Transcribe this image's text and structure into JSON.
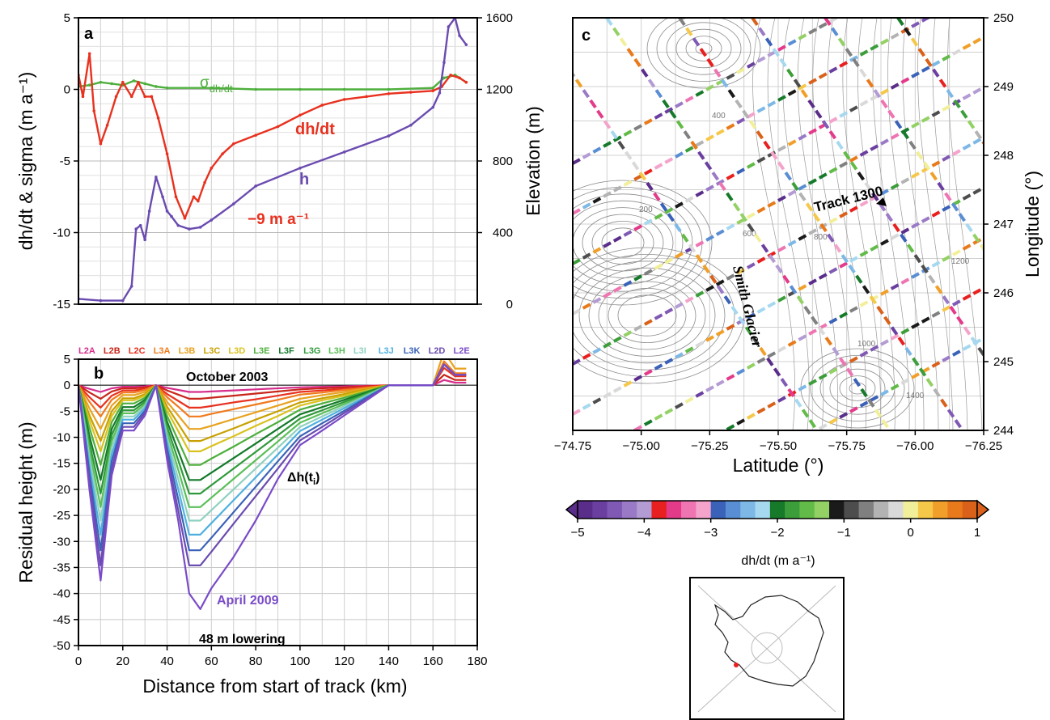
{
  "chart_data": [
    {
      "panel": "a",
      "type": "line",
      "xlabel": "",
      "ylabel": "dh/dt & sigma (m a⁻¹)",
      "ylabel_right": "Elevation (m)",
      "xlim": [
        0,
        180
      ],
      "ylim": [
        -15,
        5
      ],
      "ylim_right": [
        0,
        1600
      ],
      "yticks": [
        "5",
        "0",
        "-5",
        "-10",
        "-15"
      ],
      "yticks_right": [
        "1600",
        "1200",
        "800",
        "400",
        "0"
      ],
      "grid": true,
      "annotations": {
        "sigma": "σ",
        "sigma_sub": "dh/dt",
        "dhdt": "dh/dt",
        "h": "h",
        "min_rate": "−9 m a⁻¹"
      },
      "series": [
        {
          "name": "σdh/dt",
          "axis": "left",
          "color": "#4daf3c",
          "x": [
            0,
            5,
            10,
            15,
            20,
            25,
            30,
            35,
            40,
            60,
            80,
            100,
            120,
            140,
            160,
            165,
            170,
            175
          ],
          "y": [
            0.2,
            0.3,
            0.5,
            0.4,
            0.3,
            0.6,
            0.4,
            0.2,
            0.1,
            0.1,
            0.0,
            0.0,
            0.0,
            0.0,
            0.1,
            0.8,
            1.0,
            0.5
          ]
        },
        {
          "name": "dh/dt",
          "axis": "left",
          "color": "#e8311f",
          "x": [
            0,
            2,
            5,
            7,
            10,
            13,
            17,
            20,
            24,
            27,
            30,
            33,
            36,
            40,
            44,
            48,
            52,
            54,
            57,
            60,
            65,
            70,
            80,
            90,
            100,
            110,
            120,
            130,
            140,
            150,
            160,
            164,
            168,
            172,
            175
          ],
          "y": [
            1,
            -0.5,
            2.5,
            -1.5,
            -3.8,
            -2.5,
            -0.5,
            0.5,
            -0.5,
            0.5,
            -0.5,
            -0.5,
            -2,
            -4.5,
            -7.5,
            -9,
            -7.5,
            -7.8,
            -6.5,
            -5.5,
            -4.5,
            -3.8,
            -3.2,
            -2.6,
            -1.8,
            -1.1,
            -0.7,
            -0.5,
            -0.3,
            -0.2,
            -0.1,
            0.2,
            1.0,
            0.8,
            0.5
          ]
        },
        {
          "name": "h",
          "axis": "right",
          "color": "#6a4bb0",
          "x": [
            0,
            10,
            20,
            24,
            26,
            28,
            30,
            32,
            35,
            38,
            40,
            42,
            45,
            50,
            55,
            60,
            70,
            80,
            100,
            120,
            140,
            150,
            160,
            163,
            165,
            167,
            170,
            172,
            175
          ],
          "y": [
            30,
            20,
            20,
            100,
            420,
            440,
            360,
            520,
            710,
            600,
            520,
            490,
            440,
            420,
            430,
            470,
            560,
            660,
            760,
            850,
            940,
            1000,
            1100,
            1180,
            1350,
            1550,
            1600,
            1500,
            1450
          ]
        }
      ]
    },
    {
      "panel": "b",
      "type": "line",
      "xlabel": "Distance from start of track (km)",
      "ylabel": "Residual height (m)",
      "xlim": [
        0,
        180
      ],
      "ylim": [
        -50,
        5
      ],
      "xticks": [
        "0",
        "20",
        "40",
        "60",
        "80",
        "100",
        "120",
        "140",
        "160",
        "180"
      ],
      "yticks": [
        "5",
        "0",
        "-5",
        "-10",
        "-15",
        "-20",
        "-25",
        "-30",
        "-35",
        "-40",
        "-45",
        "-50"
      ],
      "grid": true,
      "annotations": {
        "top": "October 2003",
        "dh_prefix": "Δh(t",
        "dh_sub": "i",
        "dh_suffix": ")",
        "bottom_epoch": "April 2009",
        "lowering": "48 m lowering"
      },
      "x": [
        0,
        5,
        10,
        15,
        20,
        25,
        30,
        35,
        40,
        45,
        50,
        55,
        60,
        70,
        80,
        90,
        100,
        110,
        120,
        130,
        140,
        150,
        160,
        165,
        170,
        175
      ],
      "series": [
        {
          "name": "L2A",
          "color": "#d62e8c",
          "values": [
            0,
            -0.7,
            -1.3,
            -0.6,
            -0.3,
            -0.3,
            -0.2,
            0,
            -0.5,
            -0.9,
            -1.3,
            -1.3,
            -1.2,
            -1.0,
            -0.8,
            -0.6,
            -0.4,
            -0.3,
            -0.2,
            -0.1,
            0,
            0,
            0,
            1,
            0.5,
            0.5
          ]
        },
        {
          "name": "L2B",
          "color": "#c8261a",
          "values": [
            0,
            -1.4,
            -2.6,
            -1.2,
            -0.6,
            -0.6,
            -0.4,
            0,
            -1.0,
            -1.8,
            -2.6,
            -2.6,
            -2.4,
            -2.0,
            -1.6,
            -1.2,
            -0.8,
            -0.6,
            -0.4,
            -0.2,
            0,
            0,
            0,
            2,
            1,
            1
          ]
        },
        {
          "name": "L2C",
          "color": "#e8311f",
          "values": [
            0,
            -2.3,
            -4.3,
            -2.0,
            -1.0,
            -1.0,
            -0.7,
            0,
            -1.7,
            -3.0,
            -4.3,
            -4.3,
            -4.0,
            -3.3,
            -2.7,
            -2.0,
            -1.3,
            -1.0,
            -0.7,
            -0.3,
            0,
            0,
            0,
            3.3,
            1.7,
            1.7
          ]
        },
        {
          "name": "L3A",
          "color": "#f07a1c",
          "values": [
            0,
            -3.2,
            -6.0,
            -2.8,
            -1.4,
            -1.4,
            -0.9,
            0,
            -2.3,
            -4.1,
            -6.0,
            -6.0,
            -5.5,
            -4.6,
            -3.7,
            -2.8,
            -1.8,
            -1.4,
            -0.9,
            -0.5,
            0,
            0,
            0,
            4.6,
            2.3,
            2.3
          ]
        },
        {
          "name": "L3B",
          "color": "#e8a21f",
          "values": [
            0,
            -4.5,
            -8.4,
            -3.9,
            -1.9,
            -1.9,
            -1.3,
            0,
            -3.2,
            -5.8,
            -8.4,
            -8.4,
            -7.8,
            -6.5,
            -5.2,
            -3.9,
            -2.6,
            -1.9,
            -1.3,
            -0.6,
            0,
            0,
            0,
            6.5,
            3.2,
            3.2
          ]
        },
        {
          "name": "L3C",
          "color": "#c8a000",
          "values": [
            0,
            -5.8,
            -10.7,
            -5.0,
            -2.5,
            -2.5,
            -1.7,
            0,
            -4.1,
            -7.4,
            -10.7,
            -10.7,
            -9.9,
            -8.3,
            -6.6,
            -5.0,
            -3.3,
            -2.5,
            -1.7,
            -0.8,
            0,
            0,
            0,
            4,
            2,
            2
          ]
        },
        {
          "name": "L3D",
          "color": "#d9c21f",
          "values": [
            0,
            -6.8,
            -12.7,
            -5.9,
            -2.9,
            -2.9,
            -2.0,
            0,
            -4.9,
            -8.8,
            -12.7,
            -12.7,
            -11.7,
            -9.8,
            -7.8,
            -5.9,
            -3.9,
            -2.9,
            -2.0,
            -1.0,
            0,
            0,
            0,
            4,
            2,
            2
          ]
        },
        {
          "name": "L3E",
          "color": "#4daf3c",
          "values": [
            0,
            -8.2,
            -15.3,
            -7.1,
            -3.5,
            -3.5,
            -2.4,
            0,
            -5.9,
            -10.6,
            -15.3,
            -15.3,
            -14.1,
            -11.8,
            -9.4,
            -7.1,
            -4.7,
            -3.5,
            -2.4,
            -1.2,
            0,
            0,
            0,
            4,
            2,
            2
          ]
        },
        {
          "name": "L3F",
          "color": "#137a2a",
          "values": [
            0,
            -9.8,
            -18.2,
            -8.4,
            -4.2,
            -4.2,
            -2.8,
            0,
            -7.0,
            -12.6,
            -18.2,
            -18.2,
            -16.8,
            -14.0,
            -11.2,
            -8.4,
            -5.6,
            -4.2,
            -2.8,
            -1.4,
            0,
            0,
            0,
            4,
            2,
            2
          ]
        },
        {
          "name": "L3G",
          "color": "#2f9a3a",
          "values": [
            0,
            -11.2,
            -20.8,
            -9.6,
            -4.8,
            -4.8,
            -3.2,
            0,
            -8.0,
            -14.4,
            -20.8,
            -20.8,
            -19.2,
            -16.0,
            -12.8,
            -9.6,
            -6.4,
            -4.8,
            -3.2,
            -1.6,
            0,
            0,
            0,
            4,
            2,
            2
          ]
        },
        {
          "name": "L3H",
          "color": "#5bbf5a",
          "values": [
            0,
            -12.5,
            -23.4,
            -10.8,
            -5.4,
            -5.4,
            -3.6,
            0,
            -9.0,
            -16.2,
            -23.4,
            -23.4,
            -21.6,
            -18.0,
            -14.4,
            -10.8,
            -7.2,
            -5.4,
            -3.6,
            -1.8,
            0,
            0,
            0,
            4,
            2,
            2
          ]
        },
        {
          "name": "L3I",
          "color": "#8fd1c0",
          "values": [
            0,
            -14.0,
            -26.0,
            -12.0,
            -6.0,
            -6.0,
            -4.0,
            0,
            -10.0,
            -18.0,
            -26.0,
            -26.0,
            -24.0,
            -20.0,
            -16.0,
            -12.0,
            -8.0,
            -6.0,
            -4.0,
            -2.0,
            0,
            0,
            0,
            4,
            2,
            2
          ]
        },
        {
          "name": "L3J",
          "color": "#4fb0e0",
          "values": [
            0,
            -15.5,
            -28.7,
            -13.3,
            -6.6,
            -6.6,
            -4.4,
            0,
            -11.0,
            -19.9,
            -28.7,
            -28.7,
            -26.5,
            -22.1,
            -17.7,
            -13.3,
            -8.8,
            -6.6,
            -4.4,
            -2.2,
            0,
            0,
            0,
            4,
            2,
            2
          ]
        },
        {
          "name": "L3K",
          "color": "#3a62b8",
          "values": [
            0,
            -17.0,
            -31.7,
            -14.6,
            -7.3,
            -7.3,
            -4.9,
            0,
            -12.2,
            -21.9,
            -31.7,
            -31.7,
            -29.3,
            -24.4,
            -19.5,
            -14.6,
            -9.8,
            -7.3,
            -4.9,
            -2.4,
            0,
            0,
            0,
            4,
            2,
            2
          ]
        },
        {
          "name": "L2D",
          "color": "#6a4bb0",
          "values": [
            0,
            -18.5,
            -34.6,
            -16.0,
            -8.0,
            -8.0,
            -5.3,
            0,
            -13.3,
            -24.0,
            -34.6,
            -34.6,
            -32.0,
            -26.6,
            -21.3,
            -16.0,
            -10.6,
            -8.0,
            -5.3,
            -2.7,
            0,
            0,
            0,
            4,
            2,
            2
          ]
        },
        {
          "name": "L2E",
          "color": "#7a4bc8",
          "values": [
            0,
            -20.2,
            -37.5,
            -17.3,
            -8.7,
            -8.7,
            -5.8,
            0,
            -14.4,
            -26.0,
            -40.0,
            -43.0,
            -39.0,
            -33.0,
            -26.0,
            -18.0,
            -11.5,
            -8.7,
            -5.8,
            -2.9,
            0,
            0,
            0,
            4,
            2,
            2
          ]
        }
      ]
    },
    {
      "panel": "c",
      "type": "scatter",
      "xlabel": "Latitude (°)",
      "ylabel": "Longitude (°)",
      "xticks": [
        "−74.75",
        "−75.00",
        "−75.25",
        "−75.50",
        "−75.75",
        "−76.00",
        "−76.25"
      ],
      "yticks": [
        "250",
        "249",
        "248",
        "247",
        "246",
        "245",
        "244"
      ],
      "grid": true,
      "annotations": {
        "track": "Track 1300",
        "glacier": "Smith Glacier"
      },
      "contour_labels": [
        "200",
        "400",
        "600",
        "800",
        "1000",
        "1200",
        "1400"
      ],
      "colorbar": {
        "label": "dh/dt (m a⁻¹)",
        "ticks": [
          "−5",
          "−4",
          "−3",
          "−2",
          "−1",
          "0",
          "1"
        ],
        "colors": [
          "#5a2d8a",
          "#6a3fa0",
          "#8059b5",
          "#9a7ac6",
          "#b39bd4",
          "#e8201f",
          "#e43a8a",
          "#ef74b2",
          "#f4a3cb",
          "#3a62b8",
          "#5a8ed4",
          "#7db8e6",
          "#a6d8ef",
          "#167a2a",
          "#3c9e3a",
          "#62bb48",
          "#93d165",
          "#1a1a1a",
          "#4d4d4d",
          "#808080",
          "#b3b3b3",
          "#d9d9d9",
          "#f2ef9a",
          "#f5c84a",
          "#f0a02a",
          "#e87a1c",
          "#d9611a"
        ]
      }
    }
  ],
  "panel_labels": {
    "a": "a",
    "b": "b",
    "c": "c"
  },
  "legend_codes": [
    "L2A",
    "L2B",
    "L2C",
    "L3A",
    "L3B",
    "L3C",
    "L3D",
    "L3E",
    "L3F",
    "L3G",
    "L3H",
    "L3I",
    "L3J",
    "L3K",
    "L2D",
    "L2E"
  ]
}
